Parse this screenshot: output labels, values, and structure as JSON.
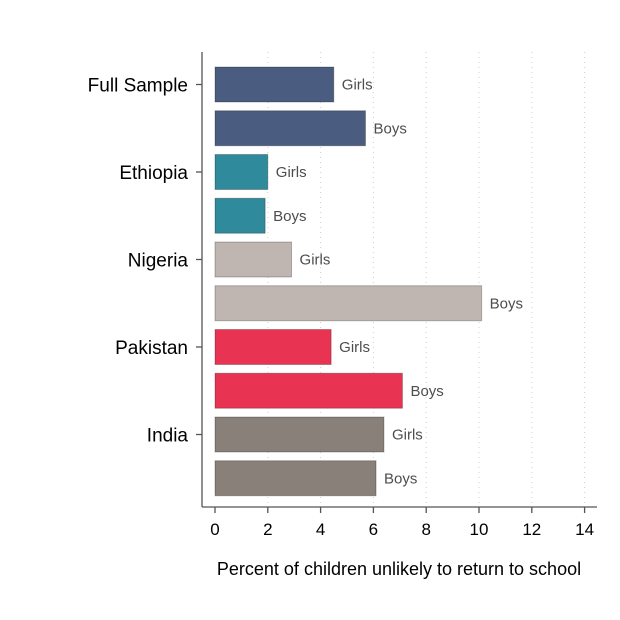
{
  "chart_data": {
    "type": "bar",
    "orientation": "horizontal",
    "title": "",
    "xlabel": "Percent of children unlikely to return to school",
    "ylabel": "",
    "xlim": [
      0,
      14
    ],
    "xticks": [
      0,
      2,
      4,
      6,
      8,
      10,
      12,
      14
    ],
    "grid": "vertical dotted",
    "legend": "none",
    "groups": [
      {
        "name": "Full Sample",
        "color": "#4a5d80",
        "bars": [
          {
            "label": "Girls",
            "value": 4.5
          },
          {
            "label": "Boys",
            "value": 5.7
          }
        ]
      },
      {
        "name": "Ethiopia",
        "color": "#2f8a9c",
        "bars": [
          {
            "label": "Girls",
            "value": 2.0
          },
          {
            "label": "Boys",
            "value": 1.9
          }
        ]
      },
      {
        "name": "Nigeria",
        "color": "#bfb6b1",
        "bars": [
          {
            "label": "Girls",
            "value": 2.9
          },
          {
            "label": "Boys",
            "value": 10.1
          }
        ]
      },
      {
        "name": "Pakistan",
        "color": "#e83352",
        "bars": [
          {
            "label": "Girls",
            "value": 4.4
          },
          {
            "label": "Boys",
            "value": 7.1
          }
        ]
      },
      {
        "name": "India",
        "color": "#888079",
        "bars": [
          {
            "label": "Girls",
            "value": 6.4
          },
          {
            "label": "Boys",
            "value": 6.1
          }
        ]
      }
    ]
  }
}
